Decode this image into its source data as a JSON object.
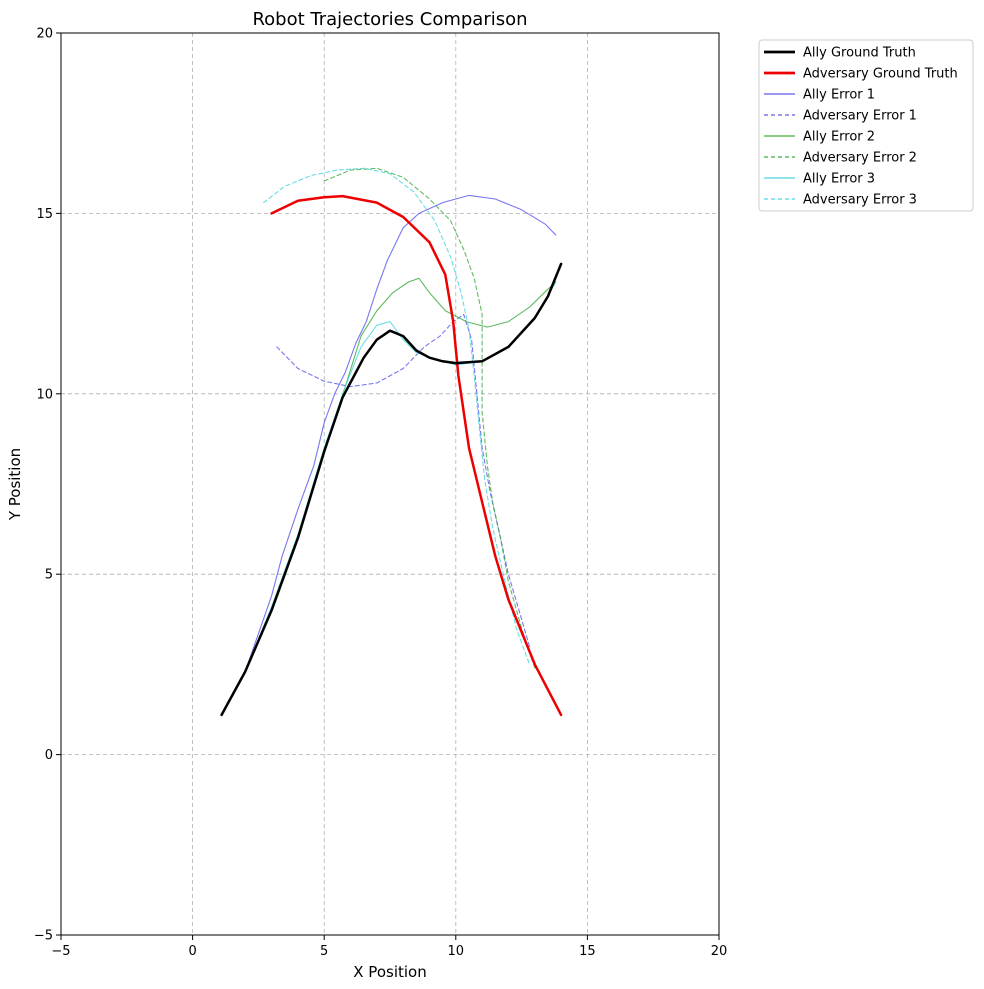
{
  "chart_data": {
    "type": "line",
    "title": "Robot Trajectories Comparison",
    "xlabel": "X Position",
    "ylabel": "Y Position",
    "xlim": [
      -5,
      20
    ],
    "ylim": [
      -5,
      20
    ],
    "xticks": [
      -5,
      0,
      5,
      10,
      15,
      20
    ],
    "yticks": [
      -5,
      0,
      5,
      10,
      15,
      20
    ],
    "xtick_labels": [
      "−5",
      "0",
      "5",
      "10",
      "15",
      "20"
    ],
    "ytick_labels": [
      "−5",
      "0",
      "5",
      "10",
      "15",
      "20"
    ],
    "grid": true,
    "legend_position": "outside top-right",
    "series": [
      {
        "name": "Ally Ground Truth",
        "color": "#000000",
        "style": "solid",
        "weight": "bold",
        "opacity": 1,
        "points": [
          [
            1.1,
            1.1
          ],
          [
            2.0,
            2.3
          ],
          [
            3.0,
            4.0
          ],
          [
            4.0,
            6.0
          ],
          [
            5.0,
            8.4
          ],
          [
            5.7,
            9.9
          ],
          [
            6.5,
            11.0
          ],
          [
            7.0,
            11.5
          ],
          [
            7.5,
            11.75
          ],
          [
            8.0,
            11.6
          ],
          [
            8.5,
            11.2
          ],
          [
            9.0,
            11.0
          ],
          [
            9.5,
            10.9
          ],
          [
            10.0,
            10.85
          ],
          [
            11.0,
            10.9
          ],
          [
            12.0,
            11.3
          ],
          [
            13.0,
            12.1
          ],
          [
            13.5,
            12.7
          ],
          [
            14.0,
            13.6
          ]
        ]
      },
      {
        "name": "Adversary Ground Truth",
        "color": "#ee0000",
        "style": "solid",
        "weight": "bold",
        "opacity": 1,
        "points": [
          [
            3.0,
            15.0
          ],
          [
            4.0,
            15.35
          ],
          [
            5.0,
            15.45
          ],
          [
            5.7,
            15.48
          ],
          [
            7.0,
            15.3
          ],
          [
            8.0,
            14.9
          ],
          [
            9.0,
            14.2
          ],
          [
            9.6,
            13.3
          ],
          [
            9.9,
            12.0
          ],
          [
            10.1,
            10.5
          ],
          [
            10.5,
            8.5
          ],
          [
            11.0,
            7.0
          ],
          [
            11.5,
            5.5
          ],
          [
            12.0,
            4.3
          ],
          [
            13.0,
            2.5
          ],
          [
            14.0,
            1.1
          ]
        ]
      },
      {
        "name": "Ally Error 1",
        "color": "#5555ee",
        "style": "solid",
        "weight": "thin",
        "opacity": 0.8,
        "points": [
          [
            1.1,
            1.1
          ],
          [
            2.0,
            2.3
          ],
          [
            3.0,
            4.4
          ],
          [
            3.4,
            5.5
          ],
          [
            4.0,
            6.8
          ],
          [
            4.6,
            8.0
          ],
          [
            5.0,
            9.2
          ],
          [
            5.4,
            10.0
          ],
          [
            5.8,
            10.6
          ],
          [
            6.2,
            11.4
          ],
          [
            6.6,
            12.0
          ],
          [
            7.0,
            12.9
          ],
          [
            7.4,
            13.7
          ],
          [
            8.0,
            14.6
          ],
          [
            8.6,
            15.0
          ],
          [
            9.5,
            15.3
          ],
          [
            10.5,
            15.5
          ],
          [
            11.5,
            15.4
          ],
          [
            12.5,
            15.1
          ],
          [
            13.4,
            14.7
          ],
          [
            13.8,
            14.4
          ]
        ]
      },
      {
        "name": "Adversary Error 1",
        "color": "#5555ee",
        "style": "dashed",
        "weight": "thin",
        "opacity": 0.8,
        "points": [
          [
            3.2,
            11.3
          ],
          [
            4.0,
            10.7
          ],
          [
            5.0,
            10.35
          ],
          [
            6.0,
            10.2
          ],
          [
            7.0,
            10.3
          ],
          [
            8.0,
            10.7
          ],
          [
            8.8,
            11.3
          ],
          [
            9.4,
            11.6
          ],
          [
            9.9,
            12.0
          ],
          [
            10.3,
            12.2
          ],
          [
            10.6,
            11.5
          ],
          [
            10.8,
            10.0
          ],
          [
            11.0,
            8.5
          ],
          [
            11.3,
            7.3
          ],
          [
            11.7,
            6.0
          ],
          [
            12.0,
            5.0
          ],
          [
            12.4,
            4.0
          ],
          [
            12.8,
            3.0
          ]
        ]
      },
      {
        "name": "Ally Error 2",
        "color": "#3aaa3a",
        "style": "solid",
        "weight": "thin",
        "opacity": 0.8,
        "points": [
          [
            1.1,
            1.1
          ],
          [
            2.0,
            2.3
          ],
          [
            3.0,
            4.0
          ],
          [
            4.0,
            6.0
          ],
          [
            5.0,
            8.4
          ],
          [
            5.8,
            10.2
          ],
          [
            6.4,
            11.6
          ],
          [
            7.0,
            12.3
          ],
          [
            7.6,
            12.8
          ],
          [
            8.2,
            13.1
          ],
          [
            8.6,
            13.2
          ],
          [
            9.0,
            12.8
          ],
          [
            9.6,
            12.3
          ],
          [
            10.4,
            12.0
          ],
          [
            11.2,
            11.85
          ],
          [
            12.0,
            12.0
          ],
          [
            12.8,
            12.4
          ],
          [
            13.5,
            12.9
          ],
          [
            13.8,
            13.1
          ]
        ]
      },
      {
        "name": "Adversary Error 2",
        "color": "#3aaa3a",
        "style": "dashed",
        "weight": "thin",
        "opacity": 0.8,
        "points": [
          [
            5.0,
            15.9
          ],
          [
            6.0,
            16.2
          ],
          [
            7.0,
            16.25
          ],
          [
            8.0,
            16.0
          ],
          [
            9.0,
            15.4
          ],
          [
            9.8,
            14.8
          ],
          [
            10.3,
            14.0
          ],
          [
            10.7,
            13.2
          ],
          [
            11.0,
            12.2
          ],
          [
            11.0,
            11.0
          ],
          [
            11.0,
            9.5
          ],
          [
            11.2,
            8.0
          ],
          [
            11.4,
            7.0
          ],
          [
            11.7,
            6.0
          ],
          [
            12.0,
            4.8
          ],
          [
            12.5,
            3.5
          ],
          [
            13.0,
            2.4
          ]
        ]
      },
      {
        "name": "Ally Error 3",
        "color": "#44d4dd",
        "style": "solid",
        "weight": "thin",
        "opacity": 0.8,
        "points": [
          [
            1.1,
            1.1
          ],
          [
            2.0,
            2.3
          ],
          [
            3.0,
            4.1
          ],
          [
            4.0,
            6.1
          ],
          [
            5.0,
            8.5
          ],
          [
            5.8,
            10.2
          ],
          [
            6.4,
            11.3
          ],
          [
            7.0,
            11.9
          ],
          [
            7.5,
            12.0
          ],
          [
            8.0,
            11.5
          ],
          [
            8.5,
            11.15
          ],
          [
            9.0,
            11.0
          ],
          [
            10.0,
            10.8
          ],
          [
            11.0,
            10.9
          ],
          [
            12.0,
            11.3
          ],
          [
            13.0,
            12.1
          ],
          [
            13.8,
            13.1
          ]
        ]
      },
      {
        "name": "Adversary Error 3",
        "color": "#44d4dd",
        "style": "dashed",
        "weight": "thin",
        "opacity": 0.8,
        "points": [
          [
            2.7,
            15.3
          ],
          [
            3.5,
            15.75
          ],
          [
            4.5,
            16.05
          ],
          [
            5.5,
            16.2
          ],
          [
            6.5,
            16.25
          ],
          [
            7.5,
            16.1
          ],
          [
            8.4,
            15.6
          ],
          [
            9.2,
            14.8
          ],
          [
            9.8,
            13.8
          ],
          [
            10.2,
            12.8
          ],
          [
            10.5,
            11.8
          ],
          [
            10.7,
            10.5
          ],
          [
            10.9,
            9.0
          ],
          [
            11.1,
            7.6
          ],
          [
            11.4,
            6.3
          ],
          [
            11.8,
            5.0
          ],
          [
            12.3,
            3.5
          ],
          [
            12.8,
            2.5
          ]
        ]
      }
    ]
  }
}
